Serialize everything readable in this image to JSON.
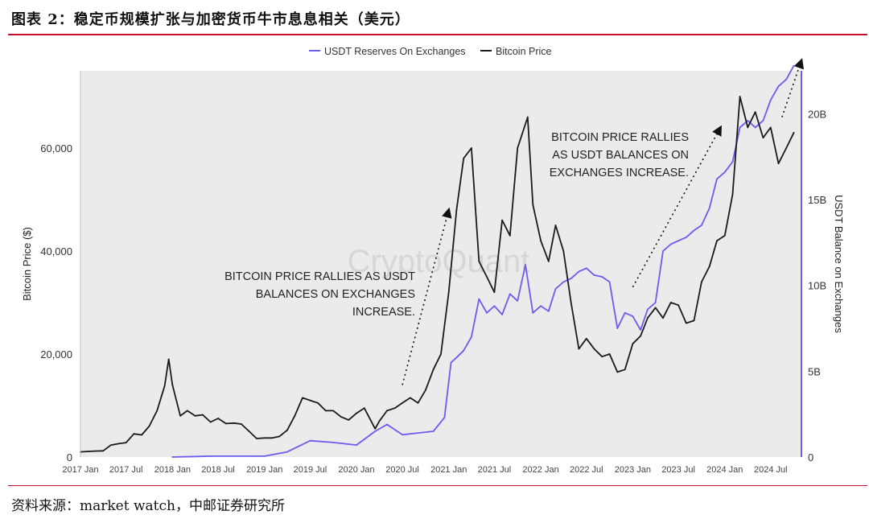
{
  "header": {
    "title": "图表 2：稳定币规模扩张与加密货币牛市息息相关（美元）"
  },
  "footer": {
    "source": "资料来源：market watch，中邮证券研究所"
  },
  "chart_data": {
    "type": "line",
    "title": "",
    "watermark": "CryptoQuant",
    "legend_position": "top-center",
    "grid": false,
    "colors": {
      "usdt": "#6b5cf0",
      "bitcoin": "#1a1a1a",
      "panel_bg": "#ebebeb",
      "accent_rule": "#c8102e"
    },
    "x_axis": {
      "ticks": [
        "2017 Jan",
        "2017 Jul",
        "2018 Jan",
        "2018 Jul",
        "2019 Jan",
        "2019 Jul",
        "2020 Jan",
        "2020 Jul",
        "2021 Jan",
        "2021 Jul",
        "2022 Jan",
        "2022 Jul",
        "2023 Jan",
        "2023 Jul",
        "2024 Jan",
        "2024 Jul"
      ],
      "range": [
        "2017-01-01",
        "2024-10-31"
      ]
    },
    "y_left": {
      "label": "Bitcoin Price ($)",
      "range": [
        0,
        75000
      ],
      "ticks": [
        0,
        20000,
        40000,
        60000
      ],
      "tick_labels": [
        "0",
        "20,000",
        "40,000",
        "60,000"
      ]
    },
    "y_right": {
      "label": "USDT Balance on Exchanges",
      "range": [
        0,
        22.5
      ],
      "ticks": [
        0,
        5,
        10,
        15,
        20
      ],
      "tick_labels": [
        "0",
        "5B",
        "10B",
        "15B",
        "20B"
      ]
    },
    "series": [
      {
        "name": "USDT Reserves On Exchanges",
        "axis": "right",
        "points": [
          [
            "2018-01-01",
            0.0
          ],
          [
            "2018-06-01",
            0.05
          ],
          [
            "2018-12-01",
            0.05
          ],
          [
            "2019-01-01",
            0.05
          ],
          [
            "2019-04-01",
            0.3
          ],
          [
            "2019-07-01",
            0.95
          ],
          [
            "2019-10-01",
            0.85
          ],
          [
            "2020-01-01",
            0.7
          ],
          [
            "2020-03-15",
            1.5
          ],
          [
            "2020-05-01",
            1.9
          ],
          [
            "2020-07-01",
            1.3
          ],
          [
            "2020-09-01",
            1.4
          ],
          [
            "2020-11-01",
            1.5
          ],
          [
            "2020-12-15",
            2.3
          ],
          [
            "2021-01-10",
            5.5
          ],
          [
            "2021-02-01",
            5.8
          ],
          [
            "2021-03-01",
            6.2
          ],
          [
            "2021-04-01",
            7.0
          ],
          [
            "2021-05-01",
            9.2
          ],
          [
            "2021-06-01",
            8.4
          ],
          [
            "2021-07-01",
            8.8
          ],
          [
            "2021-08-01",
            8.3
          ],
          [
            "2021-09-01",
            9.5
          ],
          [
            "2021-10-01",
            9.1
          ],
          [
            "2021-11-01",
            11.2
          ],
          [
            "2021-12-01",
            8.4
          ],
          [
            "2022-01-01",
            8.8
          ],
          [
            "2022-02-01",
            8.5
          ],
          [
            "2022-03-01",
            9.8
          ],
          [
            "2022-04-01",
            10.2
          ],
          [
            "2022-05-01",
            10.4
          ],
          [
            "2022-06-01",
            10.8
          ],
          [
            "2022-07-01",
            11.0
          ],
          [
            "2022-08-01",
            10.6
          ],
          [
            "2022-09-01",
            10.5
          ],
          [
            "2022-10-01",
            10.2
          ],
          [
            "2022-11-01",
            7.5
          ],
          [
            "2022-12-01",
            8.4
          ],
          [
            "2023-01-01",
            8.2
          ],
          [
            "2023-02-01",
            7.4
          ],
          [
            "2023-03-01",
            8.6
          ],
          [
            "2023-04-01",
            9.0
          ],
          [
            "2023-05-01",
            12.0
          ],
          [
            "2023-06-01",
            12.4
          ],
          [
            "2023-07-01",
            12.6
          ],
          [
            "2023-08-01",
            12.8
          ],
          [
            "2023-09-01",
            13.2
          ],
          [
            "2023-10-01",
            13.5
          ],
          [
            "2023-11-01",
            14.5
          ],
          [
            "2023-12-01",
            16.2
          ],
          [
            "2024-01-01",
            16.6
          ],
          [
            "2024-02-01",
            17.2
          ],
          [
            "2024-03-01",
            19.2
          ],
          [
            "2024-04-01",
            19.6
          ],
          [
            "2024-05-01",
            19.2
          ],
          [
            "2024-06-01",
            19.6
          ],
          [
            "2024-07-01",
            20.8
          ],
          [
            "2024-08-01",
            21.6
          ],
          [
            "2024-09-01",
            22.0
          ],
          [
            "2024-10-01",
            22.8
          ]
        ]
      },
      {
        "name": "Bitcoin Price",
        "axis": "left",
        "points": [
          [
            "2017-01-01",
            1000
          ],
          [
            "2017-02-01",
            1100
          ],
          [
            "2017-03-01",
            1150
          ],
          [
            "2017-04-01",
            1200
          ],
          [
            "2017-05-01",
            2300
          ],
          [
            "2017-06-01",
            2600
          ],
          [
            "2017-07-01",
            2800
          ],
          [
            "2017-08-01",
            4500
          ],
          [
            "2017-09-01",
            4300
          ],
          [
            "2017-10-01",
            6000
          ],
          [
            "2017-11-01",
            9000
          ],
          [
            "2017-12-01",
            13800
          ],
          [
            "2017-12-17",
            19000
          ],
          [
            "2018-01-01",
            14000
          ],
          [
            "2018-02-01",
            8000
          ],
          [
            "2018-03-01",
            9000
          ],
          [
            "2018-04-01",
            8000
          ],
          [
            "2018-05-01",
            8200
          ],
          [
            "2018-06-01",
            6800
          ],
          [
            "2018-07-01",
            7500
          ],
          [
            "2018-08-01",
            6500
          ],
          [
            "2018-09-01",
            6600
          ],
          [
            "2018-10-01",
            6400
          ],
          [
            "2018-11-01",
            5000
          ],
          [
            "2018-12-01",
            3600
          ],
          [
            "2019-01-01",
            3700
          ],
          [
            "2019-02-01",
            3700
          ],
          [
            "2019-03-01",
            4000
          ],
          [
            "2019-04-01",
            5200
          ],
          [
            "2019-05-01",
            8000
          ],
          [
            "2019-06-01",
            11500
          ],
          [
            "2019-07-01",
            11000
          ],
          [
            "2019-08-01",
            10500
          ],
          [
            "2019-09-01",
            9000
          ],
          [
            "2019-10-01",
            9000
          ],
          [
            "2019-11-01",
            7800
          ],
          [
            "2019-12-01",
            7200
          ],
          [
            "2020-01-01",
            8500
          ],
          [
            "2020-02-01",
            9500
          ],
          [
            "2020-03-15",
            5500
          ],
          [
            "2020-04-01",
            7000
          ],
          [
            "2020-05-01",
            9000
          ],
          [
            "2020-06-01",
            9500
          ],
          [
            "2020-07-01",
            10500
          ],
          [
            "2020-08-01",
            11500
          ],
          [
            "2020-09-01",
            10500
          ],
          [
            "2020-10-01",
            13000
          ],
          [
            "2020-11-01",
            17000
          ],
          [
            "2020-12-01",
            20000
          ],
          [
            "2021-01-01",
            32000
          ],
          [
            "2021-02-01",
            48000
          ],
          [
            "2021-03-01",
            58000
          ],
          [
            "2021-04-01",
            60000
          ],
          [
            "2021-05-01",
            38000
          ],
          [
            "2021-06-01",
            35000
          ],
          [
            "2021-07-01",
            32000
          ],
          [
            "2021-08-01",
            46000
          ],
          [
            "2021-09-01",
            43000
          ],
          [
            "2021-10-01",
            60000
          ],
          [
            "2021-11-10",
            66000
          ],
          [
            "2021-12-01",
            49000
          ],
          [
            "2022-01-01",
            42000
          ],
          [
            "2022-02-01",
            38000
          ],
          [
            "2022-03-01",
            45000
          ],
          [
            "2022-04-01",
            40000
          ],
          [
            "2022-05-01",
            30000
          ],
          [
            "2022-06-01",
            21000
          ],
          [
            "2022-07-01",
            23000
          ],
          [
            "2022-08-01",
            21000
          ],
          [
            "2022-09-01",
            19500
          ],
          [
            "2022-10-01",
            20000
          ],
          [
            "2022-11-01",
            16500
          ],
          [
            "2022-12-01",
            17000
          ],
          [
            "2023-01-01",
            22000
          ],
          [
            "2023-02-01",
            23500
          ],
          [
            "2023-03-01",
            27000
          ],
          [
            "2023-04-01",
            29000
          ],
          [
            "2023-05-01",
            27000
          ],
          [
            "2023-06-01",
            30000
          ],
          [
            "2023-07-01",
            29500
          ],
          [
            "2023-08-01",
            26000
          ],
          [
            "2023-09-01",
            26500
          ],
          [
            "2023-10-01",
            34000
          ],
          [
            "2023-11-01",
            37000
          ],
          [
            "2023-12-01",
            42000
          ],
          [
            "2024-01-01",
            43000
          ],
          [
            "2024-02-01",
            51000
          ],
          [
            "2024-03-01",
            70000
          ],
          [
            "2024-04-01",
            64000
          ],
          [
            "2024-05-01",
            67000
          ],
          [
            "2024-06-01",
            62000
          ],
          [
            "2024-07-01",
            64000
          ],
          [
            "2024-08-01",
            57000
          ],
          [
            "2024-09-01",
            60000
          ],
          [
            "2024-10-01",
            63000
          ]
        ]
      }
    ],
    "annotations": [
      {
        "lines": [
          "BITCOIN PRICE RALLIES AS USDT",
          "BALANCES ON EXCHANGES",
          "INCREASE."
        ],
        "arrow": {
          "from": [
            "2020-07-01",
            14000
          ],
          "to": [
            "2021-01-01",
            48000
          ]
        }
      },
      {
        "lines": [
          "BITCOIN PRICE RALLIES",
          "AS USDT BALANCES ON",
          "EXCHANGES INCREASE."
        ],
        "arrow": {
          "from": [
            "2023-01-01",
            33000
          ],
          "to": [
            "2023-12-15",
            64000
          ]
        }
      },
      {
        "lines": [],
        "arrow": {
          "from": [
            "2024-08-15",
            66000
          ],
          "to": [
            "2024-10-31",
            77000
          ]
        }
      }
    ]
  }
}
